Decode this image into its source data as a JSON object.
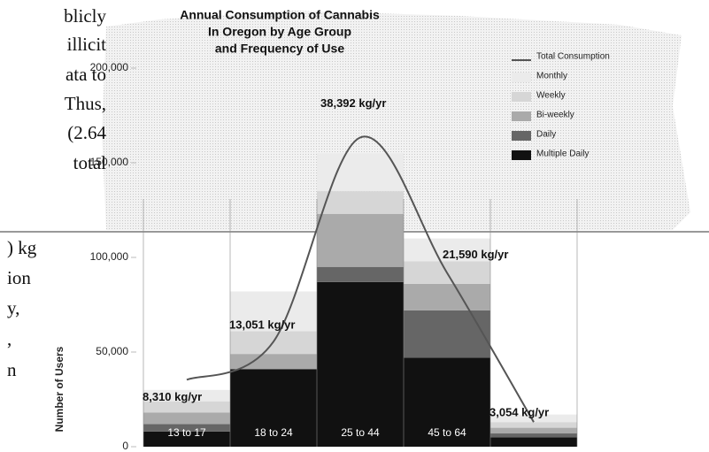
{
  "page_text": [
    "blicly",
    "illicit",
    "ata to",
    "Thus,",
    "(2.64",
    "total",
    ") kg",
    "ion",
    "y,",
    ",",
    "n"
  ],
  "chart_data": {
    "type": "bar",
    "stacked": true,
    "title": [
      "Annual Consumption of Cannabis",
      "In Oregon by Age Group",
      "and Frequency of Use"
    ],
    "y_label": "Number of Users",
    "categories": [
      "13 to 17",
      "18 to 24",
      "25 to 44",
      "45 to 64",
      null
    ],
    "series": [
      {
        "name": "Multiple Daily",
        "color": "#111111",
        "values": [
          8000,
          41000,
          87000,
          47000,
          5000
        ]
      },
      {
        "name": "Daily",
        "color": "#666666",
        "values": [
          4000,
          0,
          8000,
          25000,
          2000
        ]
      },
      {
        "name": "Bi-weekly",
        "color": "#aaaaaa",
        "values": [
          6000,
          8000,
          28000,
          14000,
          3000
        ]
      },
      {
        "name": "Weekly",
        "color": "#d6d6d6",
        "values": [
          6000,
          12000,
          12000,
          12000,
          3000
        ]
      },
      {
        "name": "Monthly",
        "color": "#ebebeb",
        "values": [
          6000,
          21000,
          20000,
          12000,
          4000
        ]
      },
      {
        "name": "Total Consumption",
        "type": "line",
        "axis": "y2",
        "color": "#555555",
        "values": [
          8310,
          13051,
          38392,
          21590,
          3054
        ],
        "value_labels": [
          "8,310 kg/yr",
          "13,051 kg/yr",
          "38,392 kg/yr",
          "21,590 kg/yr",
          "3,054 kg/yr"
        ]
      }
    ],
    "ylim": [
      0,
      200000
    ],
    "yticks": [
      0,
      {
        "value": 50000,
        "label": "50,000"
      },
      {
        "value": 100000,
        "label": "100,000"
      },
      {
        "value": 150000,
        "label": "150,000"
      },
      {
        "value": 200000,
        "label": "200,000"
      }
    ],
    "y2lim": [
      0,
      47000
    ],
    "legend": "top-right"
  }
}
